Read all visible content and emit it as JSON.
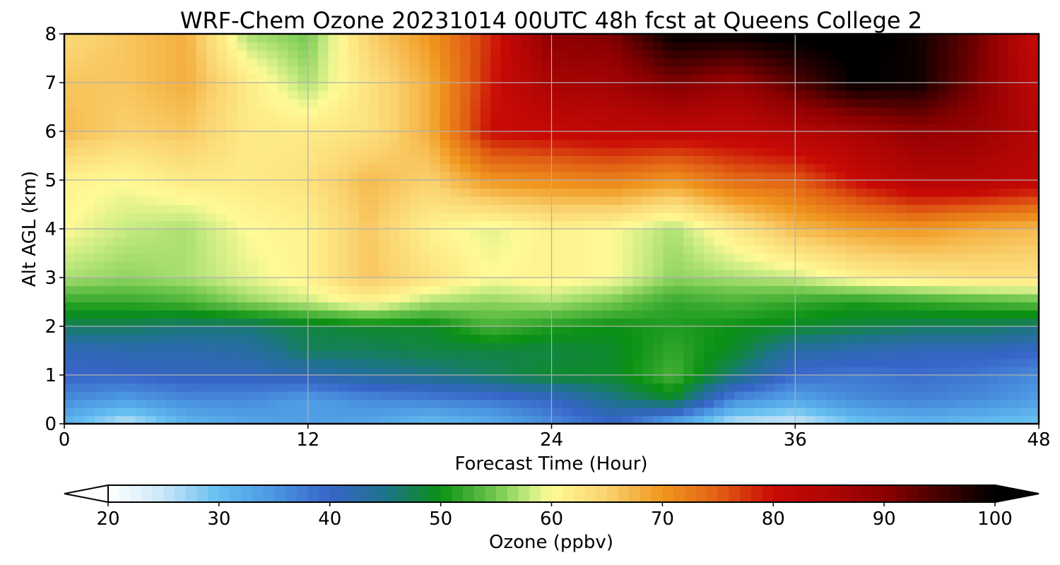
{
  "chart_data": {
    "type": "heatmap",
    "title": "WRF-Chem Ozone  20231014 00UTC 48h fcst at Queens College 2",
    "xlabel": "Forecast Time (Hour)",
    "ylabel": "Alt AGL (km)",
    "xlim": [
      0,
      48
    ],
    "ylim": [
      0,
      8
    ],
    "x_ticks": [
      0,
      12,
      24,
      36,
      48
    ],
    "y_ticks": [
      0,
      1,
      2,
      3,
      4,
      5,
      6,
      7,
      8
    ],
    "grid": true,
    "x": [
      0,
      3,
      6,
      9,
      12,
      15,
      18,
      21,
      24,
      27,
      30,
      33,
      36,
      39,
      42,
      45,
      48
    ],
    "y": [
      0,
      0.5,
      1,
      1.5,
      2,
      2.5,
      3,
      4,
      5,
      6,
      7,
      8
    ],
    "z": [
      [
        31,
        25,
        31,
        33,
        34,
        33,
        30,
        32,
        36,
        40,
        32,
        25,
        24,
        29,
        31,
        30,
        29
      ],
      [
        36,
        34,
        36,
        36,
        34,
        36,
        37,
        38,
        40,
        45,
        49,
        36,
        33,
        36,
        37,
        36,
        34
      ],
      [
        40,
        40,
        41,
        41,
        42,
        44,
        45,
        47,
        49,
        49,
        53,
        46,
        39,
        38,
        39,
        38,
        36
      ],
      [
        41,
        42,
        42,
        43,
        47,
        47,
        48,
        48,
        48,
        49,
        52,
        49,
        43,
        42,
        41,
        41,
        40
      ],
      [
        47,
        47,
        46,
        46,
        48,
        49,
        49,
        53,
        51,
        50,
        51,
        50,
        49,
        48,
        47,
        47,
        46
      ],
      [
        52,
        52,
        53,
        56,
        58,
        61,
        57,
        56,
        57,
        55,
        52,
        53,
        52,
        51,
        52,
        53,
        54
      ],
      [
        57,
        56,
        57,
        59,
        61,
        66,
        63,
        60,
        61,
        60,
        56,
        57,
        58,
        61,
        62,
        63,
        63
      ],
      [
        60,
        58,
        57,
        60,
        61,
        66,
        61,
        59,
        61,
        60,
        57,
        62,
        67,
        69,
        70,
        68,
        67
      ],
      [
        61,
        60,
        62,
        62,
        63,
        67,
        65,
        70,
        71,
        72,
        70,
        74,
        75,
        80,
        84,
        84,
        82
      ],
      [
        67,
        65,
        66,
        62,
        62,
        63,
        68,
        80,
        81,
        82,
        82,
        82,
        84,
        86,
        89,
        88,
        84
      ],
      [
        66,
        66,
        68,
        62,
        57,
        63,
        68,
        79,
        86,
        87,
        91,
        88,
        94,
        100,
        99,
        91,
        82
      ],
      [
        64,
        66,
        68,
        57,
        55,
        65,
        70,
        78,
        90,
        91,
        100,
        100,
        101,
        101,
        99,
        92,
        80
      ]
    ],
    "colorbar": {
      "label": "Ozone  (ppbv)",
      "ticks": [
        20,
        30,
        40,
        50,
        60,
        70,
        80,
        90,
        100
      ],
      "range": [
        20,
        100
      ],
      "extend": "both",
      "orientation": "horizontal"
    }
  }
}
